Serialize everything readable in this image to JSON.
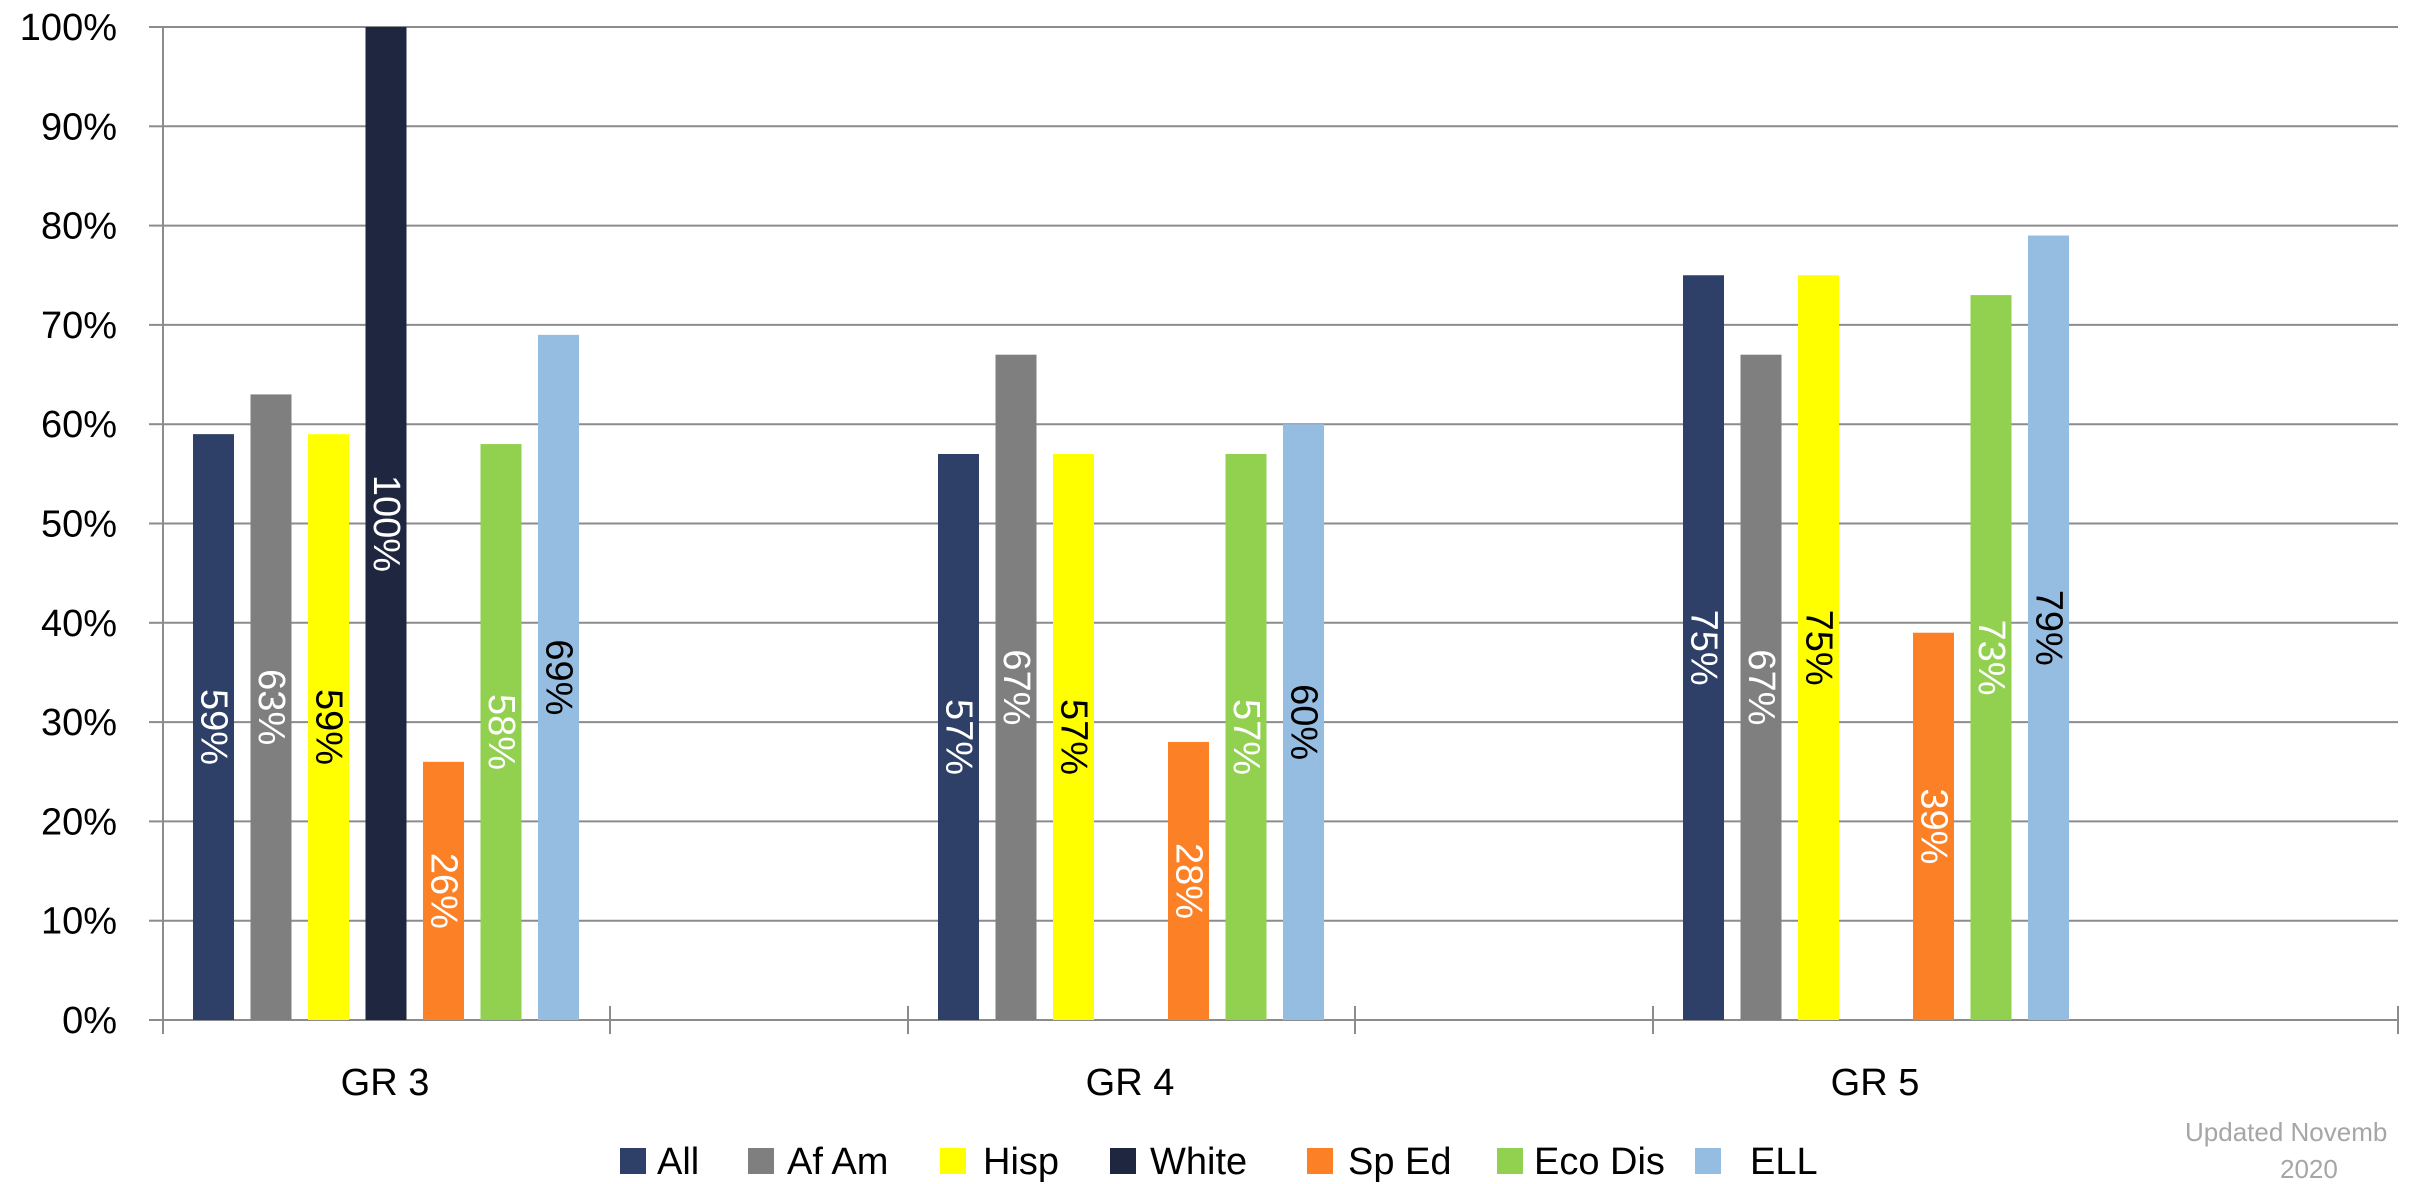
{
  "chart_data": {
    "type": "bar",
    "categories": [
      "GR 3",
      "GR 4",
      "GR 5"
    ],
    "ylim": [
      0,
      100
    ],
    "yticks": [
      "0%",
      "10%",
      "20%",
      "30%",
      "40%",
      "50%",
      "60%",
      "70%",
      "80%",
      "90%",
      "100%"
    ],
    "grid": true,
    "legend_position": "bottom",
    "series": [
      {
        "name": "All",
        "color": "#2e4068",
        "label_color": "#ffffff",
        "values": [
          59,
          57,
          75
        ],
        "labels": [
          "59%",
          "57%",
          "75%"
        ]
      },
      {
        "name": "Af Am",
        "color": "#7f7f7f",
        "label_color": "#ffffff",
        "values": [
          63,
          67,
          67
        ],
        "labels": [
          "63%",
          "67%",
          "67%"
        ]
      },
      {
        "name": "Hisp",
        "color": "#ffff00",
        "label_color": "#000000",
        "values": [
          59,
          57,
          75
        ],
        "labels": [
          "59%",
          "57%",
          "75%"
        ]
      },
      {
        "name": "White",
        "color": "#1f2640",
        "label_color": "#ffffff",
        "values": [
          100,
          null,
          null
        ],
        "labels": [
          "100%",
          null,
          null
        ]
      },
      {
        "name": "Sp Ed",
        "color": "#fc8126",
        "label_color": "#ffffff",
        "values": [
          26,
          28,
          39
        ],
        "labels": [
          "26%",
          "28%",
          "39%"
        ]
      },
      {
        "name": "Eco Dis",
        "color": "#92d050",
        "label_color": "#ffffff",
        "values": [
          58,
          57,
          73
        ],
        "labels": [
          "58%",
          "57%",
          "73%"
        ]
      },
      {
        "name": "ELL",
        "color": "#95bde1",
        "label_color": "#000000",
        "values": [
          69,
          60,
          79
        ],
        "labels": [
          "69%",
          "60%",
          "79%"
        ]
      }
    ],
    "footnote_lines": [
      "Updated Novemb",
      "2020"
    ]
  }
}
